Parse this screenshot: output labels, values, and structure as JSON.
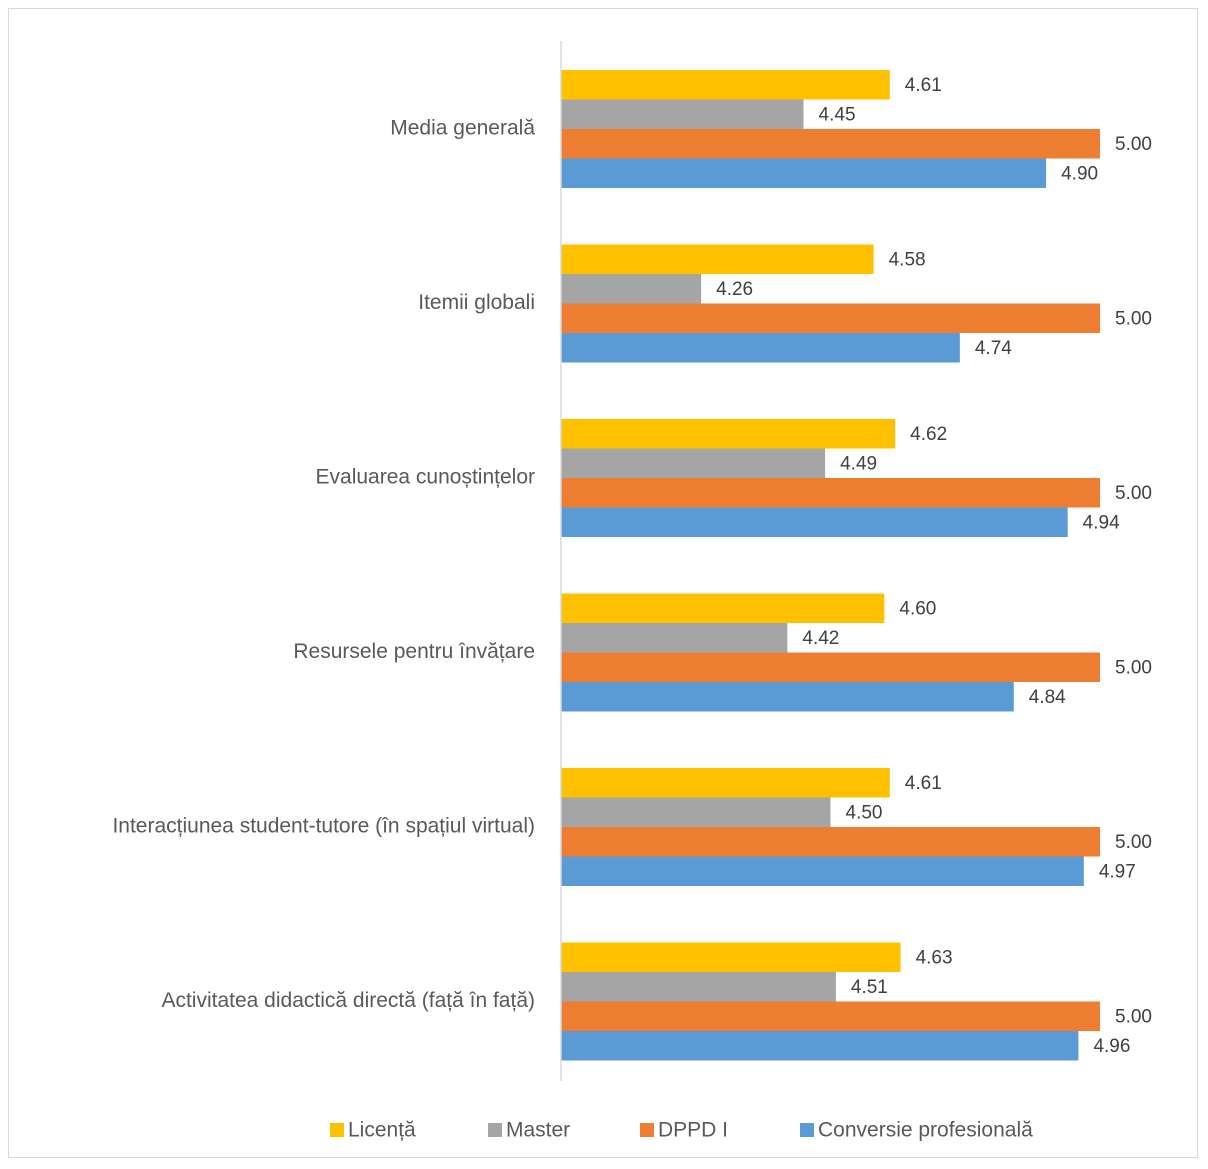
{
  "chart_data": {
    "type": "bar",
    "orientation": "horizontal",
    "categories": [
      "Media generală",
      "Itemii globali",
      "Evaluarea cunoștințelor",
      "Resursele pentru învățare",
      "Interacțiunea student-tutore (în spațiul virtual)",
      "Activitatea didactică directă (față în față)"
    ],
    "series": [
      {
        "name": "Licență",
        "color": "#FFC000",
        "values": [
          4.61,
          4.58,
          4.62,
          4.6,
          4.61,
          4.63
        ],
        "labels": [
          "4.61",
          "4.58",
          "4.62",
          "4.60",
          "4.61",
          "4.63"
        ]
      },
      {
        "name": "Master",
        "color": "#A5A5A5",
        "values": [
          4.45,
          4.26,
          4.49,
          4.42,
          4.5,
          4.51
        ],
        "labels": [
          "4.45",
          "4.26",
          "4.49",
          "4.42",
          "4.50",
          "4.51"
        ]
      },
      {
        "name": "DPPD I",
        "color": "#ED7D31",
        "values": [
          5.0,
          5.0,
          5.0,
          5.0,
          5.0,
          5.0
        ],
        "labels": [
          "5.00",
          "5.00",
          "5.00",
          "5.00",
          "5.00",
          "5.00"
        ]
      },
      {
        "name": "Conversie profesională",
        "color": "#5B9BD5",
        "values": [
          4.9,
          4.74,
          4.94,
          4.84,
          4.97,
          4.96
        ],
        "labels": [
          "4.90",
          "4.74",
          "4.94",
          "4.84",
          "4.97",
          "4.96"
        ]
      }
    ],
    "xlim": [
      4.0,
      5.0
    ],
    "grid": false,
    "legend_position": "bottom"
  }
}
